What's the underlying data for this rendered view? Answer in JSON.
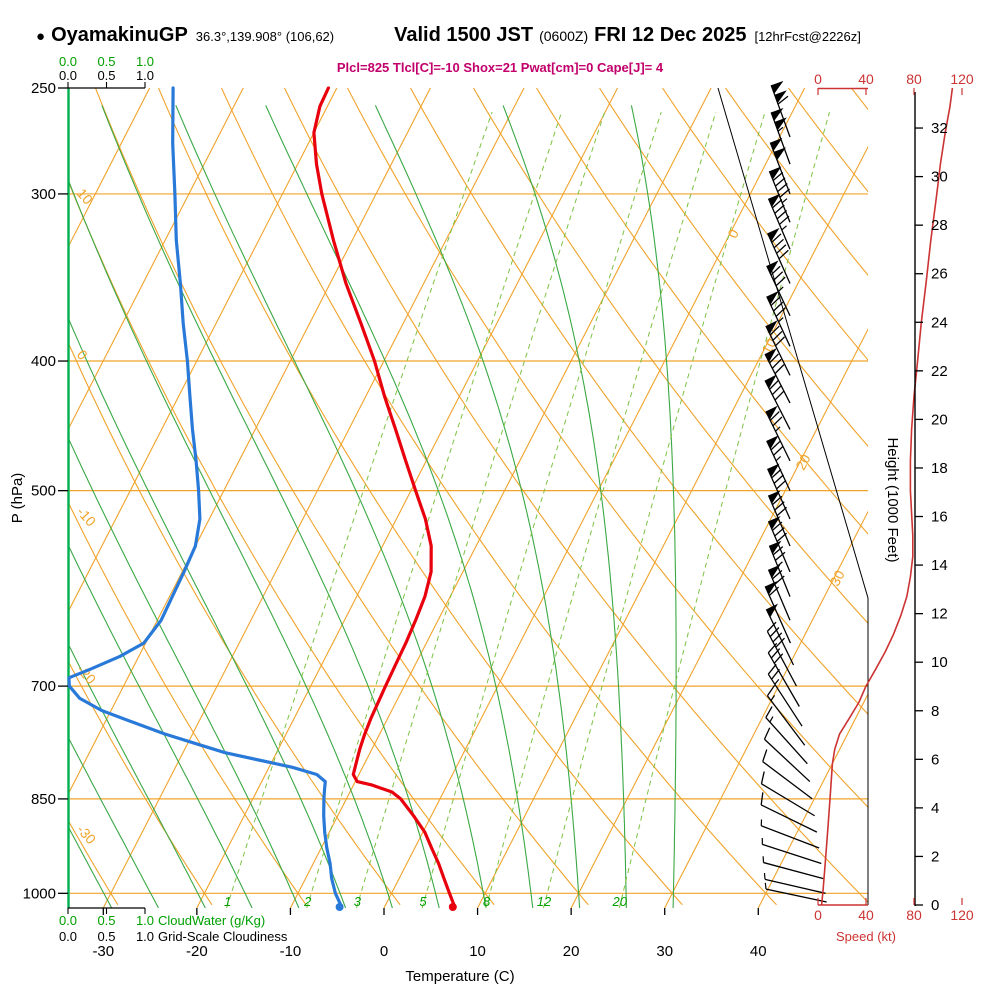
{
  "header": {
    "bullet": "●",
    "station": "OyamakinuGP",
    "coords": "36.3°,139.908° (106,62)",
    "valid_main": "Valid 1500 JST",
    "valid_z": "(0600Z)",
    "valid_date": "FRI 12 Dec 2025",
    "fcst": "[12hrFcst@2226z]",
    "params": "Plcl=825 Tlcl[C]=-10 Shox=21 Pwat[cm]=0 Cape[J]= 4"
  },
  "axes": {
    "pressure": {
      "label": "P (hPa)",
      "ticks": [
        250,
        300,
        400,
        500,
        700,
        850,
        1000
      ]
    },
    "temperature": {
      "label": "Temperature (C)",
      "ticks": [
        -30,
        -20,
        -10,
        0,
        10,
        20,
        30,
        40
      ]
    },
    "height": {
      "label": "Height (1000 Feet)",
      "ticks": [
        0,
        2,
        4,
        6,
        8,
        10,
        12,
        14,
        16,
        18,
        20,
        22,
        24,
        26,
        28,
        30,
        32
      ]
    },
    "speed": {
      "label": "Speed (kt)",
      "ticks": [
        0,
        40,
        80,
        120
      ]
    },
    "cloud": {
      "cloudwater_label": "CloudWater (g/Kg)",
      "cloudiness_label": "Grid-Scale Cloudiness",
      "ticks": [
        "0.0",
        "0.5",
        "1.0"
      ]
    }
  },
  "chart_data": {
    "type": "line",
    "subtype": "skew-t-log-p-sounding",
    "pressure_range_hPa": [
      250,
      1026
    ],
    "temperature_axis_range_C": [
      -30,
      40
    ],
    "height_axis_range_kft": [
      0,
      32
    ],
    "speed_axis_range_kt": [
      0,
      120
    ],
    "isotherm_labels_C": [
      0,
      10,
      20,
      30
    ],
    "dry_adiabat_labels_C": [
      10,
      0,
      -10,
      -20,
      -30
    ],
    "mixing_ratio_labels_gkg": [
      1,
      2,
      3,
      5,
      8,
      12,
      20
    ],
    "temperature_profile": {
      "pressure": [
        1020,
        1000,
        975,
        950,
        925,
        900,
        875,
        850,
        840,
        830,
        825,
        815,
        800,
        780,
        760,
        740,
        720,
        700,
        675,
        650,
        625,
        600,
        575,
        550,
        525,
        500,
        475,
        450,
        425,
        400,
        375,
        350,
        325,
        300,
        285,
        270,
        258,
        250
      ],
      "temp_c": [
        7.3,
        6.2,
        4.8,
        3.4,
        1.8,
        0.2,
        -1.9,
        -4.2,
        -5.5,
        -8.0,
        -9.8,
        -10.6,
        -10.9,
        -11.3,
        -11.6,
        -11.8,
        -11.9,
        -12.0,
        -12.1,
        -12.2,
        -12.4,
        -12.7,
        -13.4,
        -14.8,
        -16.9,
        -19.5,
        -22.2,
        -25.0,
        -28.0,
        -31.0,
        -34.5,
        -38.3,
        -42.0,
        -45.8,
        -48.0,
        -50.0,
        -50.8,
        -50.9
      ]
    },
    "dewpoint_profile": {
      "pressure": [
        1020,
        1000,
        975,
        950,
        925,
        900,
        875,
        850,
        835,
        825,
        815,
        805,
        795,
        785,
        775,
        760,
        745,
        730,
        715,
        700,
        690,
        680,
        665,
        650,
        625,
        600,
        575,
        550,
        525,
        500,
        475,
        450,
        425,
        400,
        375,
        350,
        325,
        300,
        275,
        250
      ],
      "temp_c": [
        -4.8,
        -6.0,
        -7.2,
        -8.2,
        -9.4,
        -10.5,
        -11.5,
        -12.4,
        -12.9,
        -13.2,
        -14.5,
        -17.5,
        -21.5,
        -25.5,
        -28.5,
        -33.0,
        -37.0,
        -41.0,
        -44.0,
        -45.8,
        -46.3,
        -44.5,
        -42.0,
        -40.2,
        -39.6,
        -39.7,
        -39.8,
        -40.0,
        -41.0,
        -42.7,
        -44.6,
        -46.7,
        -48.8,
        -51.0,
        -53.5,
        -56.0,
        -58.8,
        -61.5,
        -64.5,
        -67.5
      ]
    },
    "wind_speed_profile": {
      "pressure": [
        1020,
        1000,
        975,
        950,
        925,
        900,
        875,
        850,
        825,
        800,
        780,
        760,
        740,
        720,
        700,
        680,
        660,
        640,
        620,
        600,
        580,
        560,
        540,
        520,
        500,
        475,
        450,
        425,
        400,
        375,
        350,
        325,
        300,
        285,
        270,
        258,
        250
      ],
      "speed_kt": [
        3,
        4,
        5,
        6,
        7,
        8,
        9,
        10,
        11,
        12,
        14,
        18,
        26,
        34,
        40,
        48,
        56,
        63,
        69,
        74,
        77,
        79,
        79,
        78,
        77,
        77,
        78,
        80,
        83,
        86,
        90,
        94,
        99,
        102,
        106,
        110,
        112
      ]
    },
    "wind_barbs": {
      "columns": [
        "pressure_hPa",
        "dir_deg_from",
        "speed_kt"
      ],
      "rows": [
        [
          272,
          340,
          108
        ],
        [
          285,
          340,
          103
        ],
        [
          300,
          339,
          100
        ],
        [
          315,
          338,
          97
        ],
        [
          330,
          337,
          93
        ],
        [
          350,
          336,
          90
        ],
        [
          370,
          335,
          87
        ],
        [
          390,
          335,
          84
        ],
        [
          410,
          334,
          82
        ],
        [
          430,
          333,
          80
        ],
        [
          450,
          333,
          78
        ],
        [
          475,
          334,
          77
        ],
        [
          500,
          335,
          77
        ],
        [
          525,
          336,
          78
        ],
        [
          550,
          337,
          79
        ],
        [
          575,
          337,
          78
        ],
        [
          600,
          338,
          75
        ],
        [
          625,
          337,
          68
        ],
        [
          650,
          336,
          58
        ],
        [
          675,
          334,
          48
        ],
        [
          700,
          332,
          40
        ],
        [
          725,
          330,
          31
        ],
        [
          750,
          327,
          23
        ],
        [
          775,
          323,
          17
        ],
        [
          800,
          318,
          13
        ],
        [
          825,
          313,
          11
        ],
        [
          850,
          307,
          10
        ],
        [
          875,
          301,
          9
        ],
        [
          900,
          296,
          8
        ],
        [
          925,
          291,
          7
        ],
        [
          950,
          288,
          6
        ],
        [
          975,
          285,
          5
        ],
        [
          1000,
          283,
          4
        ],
        [
          1015,
          282,
          3
        ]
      ]
    },
    "surface_markers": {
      "temp_c": 7.3,
      "dewpoint_c": -4.8
    },
    "cloudwater_profile_gkg": 0,
    "grid_scale_cloudiness": 0
  },
  "colors": {
    "grid_orange": "#F0A32B",
    "moist_green": "#3AA845",
    "mixing_green": "#7DC243",
    "cloud_green": "#00B14F",
    "green_text": "#00A000",
    "temp_red": "#E8000D",
    "dewpoint_blue": "#2979D9",
    "speed_red": "#CC3333",
    "params_magenta": "#C2006B",
    "black": "#000000"
  }
}
